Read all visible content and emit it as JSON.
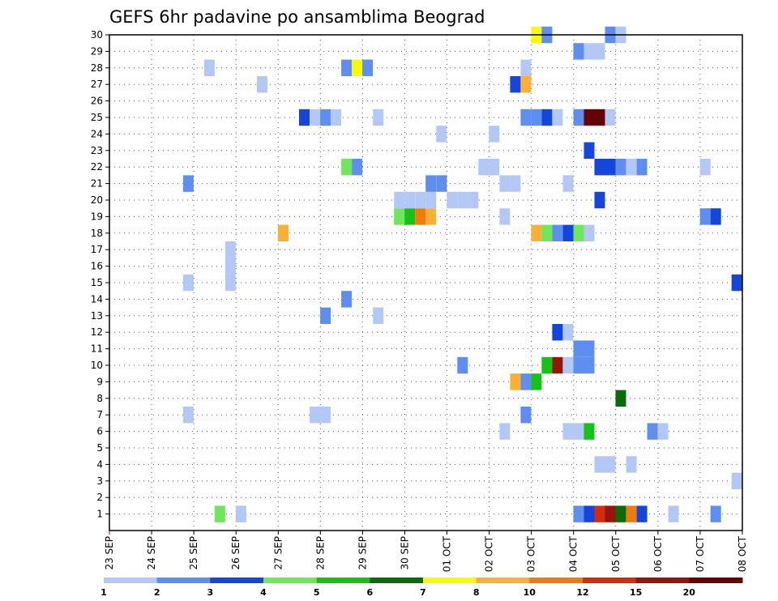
{
  "chart_data": {
    "type": "heatmap",
    "title": "GEFS 6hr padavine po ansamblima Beograd",
    "xlabel": "",
    "ylabel": "",
    "x_unit": "days since 23 SEP",
    "xlim": [
      0,
      15
    ],
    "ylim": [
      0,
      30
    ],
    "grid": true,
    "x_tick_labels": [
      "23 SEP",
      "24 SEP",
      "25 SEP",
      "26 SEP",
      "27 SEP",
      "28 SEP",
      "29 SEP",
      "30 SEP",
      "01 OCT",
      "02 OCT",
      "03 OCT",
      "04 OCT",
      "05 OCT",
      "06 OCT",
      "07 OCT",
      "08 OCT"
    ],
    "y_tick_labels": [
      "1",
      "2",
      "3",
      "4",
      "5",
      "6",
      "7",
      "8",
      "9",
      "10",
      "11",
      "12",
      "13",
      "14",
      "15",
      "16",
      "17",
      "18",
      "19",
      "20",
      "21",
      "22",
      "23",
      "24",
      "25",
      "26",
      "27",
      "28",
      "29",
      "30"
    ],
    "colorbar": {
      "labels": [
        "1",
        "2",
        "3",
        "4",
        "5",
        "6",
        "7",
        "8",
        "10",
        "12",
        "15",
        "20"
      ],
      "colors": [
        "#b3c8f5",
        "#5d8ef0",
        "#1546db",
        "#6ee85a",
        "#17c217",
        "#0a6b0a",
        "#fafa00",
        "#fbb033",
        "#f27a0a",
        "#d42c0a",
        "#961509",
        "#640303"
      ]
    },
    "cells": [
      {
        "m": 1,
        "t": 2.62,
        "c": 4
      },
      {
        "m": 1,
        "t": 3.12,
        "c": 1
      },
      {
        "m": 1,
        "t": 11.12,
        "c": 2
      },
      {
        "m": 1,
        "t": 11.37,
        "c": 3
      },
      {
        "m": 1,
        "t": 11.62,
        "c": 10
      },
      {
        "m": 1,
        "t": 11.87,
        "c": 11
      },
      {
        "m": 1,
        "t": 12.12,
        "c": 6
      },
      {
        "m": 1,
        "t": 12.37,
        "c": 9
      },
      {
        "m": 1,
        "t": 12.62,
        "c": 3
      },
      {
        "m": 1,
        "t": 13.37,
        "c": 1
      },
      {
        "m": 1,
        "t": 14.37,
        "c": 2
      },
      {
        "m": 3,
        "t": 14.87,
        "c": 1
      },
      {
        "m": 4,
        "t": 11.62,
        "c": 1
      },
      {
        "m": 4,
        "t": 11.87,
        "c": 1
      },
      {
        "m": 4,
        "t": 12.37,
        "c": 1
      },
      {
        "m": 6,
        "t": 9.37,
        "c": 1
      },
      {
        "m": 6,
        "t": 10.87,
        "c": 1
      },
      {
        "m": 6,
        "t": 11.12,
        "c": 1
      },
      {
        "m": 6,
        "t": 11.37,
        "c": 5
      },
      {
        "m": 6,
        "t": 12.87,
        "c": 2
      },
      {
        "m": 6,
        "t": 13.12,
        "c": 1
      },
      {
        "m": 7,
        "t": 1.87,
        "c": 1
      },
      {
        "m": 7,
        "t": 4.87,
        "c": 1
      },
      {
        "m": 7,
        "t": 5.12,
        "c": 1
      },
      {
        "m": 7,
        "t": 9.87,
        "c": 2
      },
      {
        "m": 8,
        "t": 12.12,
        "c": 6
      },
      {
        "m": 9,
        "t": 9.62,
        "c": 8
      },
      {
        "m": 9,
        "t": 9.87,
        "c": 2
      },
      {
        "m": 9,
        "t": 10.12,
        "c": 5
      },
      {
        "m": 10,
        "t": 8.37,
        "c": 2
      },
      {
        "m": 10,
        "t": 10.37,
        "c": 5
      },
      {
        "m": 10,
        "t": 10.62,
        "c": 11
      },
      {
        "m": 10,
        "t": 10.87,
        "c": 1
      },
      {
        "m": 10,
        "t": 11.12,
        "c": 2
      },
      {
        "m": 10,
        "t": 11.37,
        "c": 2
      },
      {
        "m": 11,
        "t": 11.12,
        "c": 2
      },
      {
        "m": 11,
        "t": 11.37,
        "c": 2
      },
      {
        "m": 12,
        "t": 10.62,
        "c": 3
      },
      {
        "m": 12,
        "t": 10.87,
        "c": 1
      },
      {
        "m": 13,
        "t": 5.12,
        "c": 2
      },
      {
        "m": 13,
        "t": 6.37,
        "c": 1
      },
      {
        "m": 14,
        "t": 5.62,
        "c": 2
      },
      {
        "m": 15,
        "t": 1.87,
        "c": 1
      },
      {
        "m": 15,
        "t": 2.87,
        "c": 1
      },
      {
        "m": 15,
        "t": 14.87,
        "c": 3
      },
      {
        "m": 16,
        "t": 2.87,
        "c": 1
      },
      {
        "m": 17,
        "t": 2.87,
        "c": 1
      },
      {
        "m": 18,
        "t": 4.12,
        "c": 8
      },
      {
        "m": 18,
        "t": 10.12,
        "c": 8
      },
      {
        "m": 18,
        "t": 10.37,
        "c": 4
      },
      {
        "m": 18,
        "t": 10.62,
        "c": 2
      },
      {
        "m": 18,
        "t": 10.87,
        "c": 3
      },
      {
        "m": 18,
        "t": 11.12,
        "c": 4
      },
      {
        "m": 18,
        "t": 11.37,
        "c": 1
      },
      {
        "m": 19,
        "t": 6.87,
        "c": 4
      },
      {
        "m": 19,
        "t": 7.12,
        "c": 5
      },
      {
        "m": 19,
        "t": 7.37,
        "c": 9
      },
      {
        "m": 19,
        "t": 7.62,
        "c": 8
      },
      {
        "m": 19,
        "t": 9.37,
        "c": 1
      },
      {
        "m": 19,
        "t": 14.12,
        "c": 2
      },
      {
        "m": 19,
        "t": 14.37,
        "c": 3
      },
      {
        "m": 20,
        "t": 6.87,
        "c": 1
      },
      {
        "m": 20,
        "t": 7.12,
        "c": 1
      },
      {
        "m": 20,
        "t": 7.37,
        "c": 1
      },
      {
        "m": 20,
        "t": 7.62,
        "c": 1
      },
      {
        "m": 20,
        "t": 8.12,
        "c": 1
      },
      {
        "m": 20,
        "t": 8.37,
        "c": 1
      },
      {
        "m": 20,
        "t": 8.62,
        "c": 1
      },
      {
        "m": 20,
        "t": 11.62,
        "c": 3
      },
      {
        "m": 21,
        "t": 1.87,
        "c": 2
      },
      {
        "m": 21,
        "t": 7.62,
        "c": 2
      },
      {
        "m": 21,
        "t": 7.87,
        "c": 2
      },
      {
        "m": 21,
        "t": 9.37,
        "c": 1
      },
      {
        "m": 21,
        "t": 9.62,
        "c": 1
      },
      {
        "m": 21,
        "t": 10.87,
        "c": 1
      },
      {
        "m": 22,
        "t": 5.62,
        "c": 4
      },
      {
        "m": 22,
        "t": 5.87,
        "c": 2
      },
      {
        "m": 22,
        "t": 8.87,
        "c": 1
      },
      {
        "m": 22,
        "t": 9.12,
        "c": 1
      },
      {
        "m": 22,
        "t": 11.62,
        "c": 3
      },
      {
        "m": 22,
        "t": 11.87,
        "c": 3
      },
      {
        "m": 22,
        "t": 12.12,
        "c": 2
      },
      {
        "m": 22,
        "t": 12.37,
        "c": 1
      },
      {
        "m": 22,
        "t": 12.62,
        "c": 2
      },
      {
        "m": 22,
        "t": 14.12,
        "c": 1
      },
      {
        "m": 23,
        "t": 11.37,
        "c": 3
      },
      {
        "m": 24,
        "t": 7.87,
        "c": 1
      },
      {
        "m": 24,
        "t": 9.12,
        "c": 1
      },
      {
        "m": 25,
        "t": 4.62,
        "c": 3
      },
      {
        "m": 25,
        "t": 4.87,
        "c": 1
      },
      {
        "m": 25,
        "t": 5.12,
        "c": 2
      },
      {
        "m": 25,
        "t": 5.37,
        "c": 1
      },
      {
        "m": 25,
        "t": 6.37,
        "c": 1
      },
      {
        "m": 25,
        "t": 9.87,
        "c": 2
      },
      {
        "m": 25,
        "t": 10.12,
        "c": 2
      },
      {
        "m": 25,
        "t": 10.37,
        "c": 3
      },
      {
        "m": 25,
        "t": 10.62,
        "c": 1
      },
      {
        "m": 25,
        "t": 11.12,
        "c": 2
      },
      {
        "m": 25,
        "t": 11.37,
        "c": 12
      },
      {
        "m": 25,
        "t": 11.62,
        "c": 12
      },
      {
        "m": 25,
        "t": 11.87,
        "c": 1
      },
      {
        "m": 27,
        "t": 3.62,
        "c": 1
      },
      {
        "m": 27,
        "t": 9.62,
        "c": 3
      },
      {
        "m": 27,
        "t": 9.87,
        "c": 8
      },
      {
        "m": 28,
        "t": 2.37,
        "c": 1
      },
      {
        "m": 28,
        "t": 5.62,
        "c": 2
      },
      {
        "m": 28,
        "t": 5.87,
        "c": 7
      },
      {
        "m": 28,
        "t": 6.12,
        "c": 2
      },
      {
        "m": 28,
        "t": 9.87,
        "c": 1
      },
      {
        "m": 29,
        "t": 11.12,
        "c": 2
      },
      {
        "m": 29,
        "t": 11.37,
        "c": 1
      },
      {
        "m": 29,
        "t": 11.62,
        "c": 1
      },
      {
        "m": 30,
        "t": 10.12,
        "c": 7
      },
      {
        "m": 30,
        "t": 10.37,
        "c": 2
      },
      {
        "m": 30,
        "t": 11.87,
        "c": 2
      },
      {
        "m": 30,
        "t": 12.12,
        "c": 1
      }
    ]
  }
}
